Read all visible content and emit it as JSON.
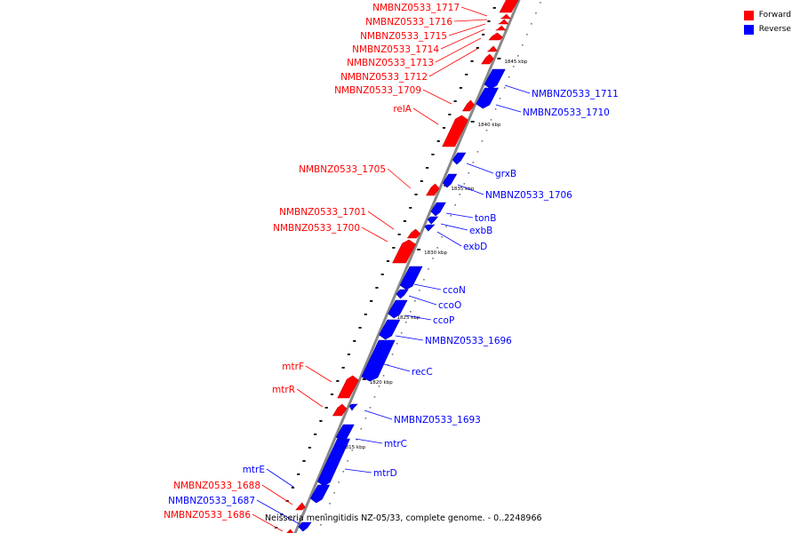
{
  "legend": [
    {
      "label": "Forward",
      "color": "#ff0000"
    },
    {
      "label": "Reverse",
      "color": "#0000ff"
    }
  ],
  "caption": "Neisseria meningitidis NZ-05/33, complete genome. - 0..2248966",
  "colors": {
    "forward": "#ff0000",
    "reverse": "#0000ff",
    "axis": "#888888",
    "tick": "#000000"
  },
  "scale_labels": [
    "1845 kbp",
    "1840 kbp",
    "1835 kbp",
    "1830 kbp",
    "1825 kbp",
    "1820 kbp",
    "1815 kbp"
  ],
  "forward_labels": [
    "NMBNZ0533_1717",
    "NMBNZ0533_1716",
    "NMBNZ0533_1715",
    "NMBNZ0533_1714",
    "NMBNZ0533_1713",
    "NMBNZ0533_1712",
    "NMBNZ0533_1709",
    "relA",
    "NMBNZ0533_1705",
    "NMBNZ0533_1701",
    "NMBNZ0533_1700",
    "mtrF",
    "mtrR",
    "NMBNZ0533_1688",
    "NMBNZ0533_1686"
  ],
  "reverse_labels": [
    "NMBNZ0533_1711",
    "NMBNZ0533_1710",
    "grxB",
    "NMBNZ0533_1706",
    "tonB",
    "exbB",
    "exbD",
    "ccoN",
    "ccoO",
    "ccoP",
    "NMBNZ0533_1696",
    "recC",
    "NMBNZ0533_1693",
    "mtrC",
    "mtrD",
    "mtrE",
    "NMBNZ0533_1687"
  ]
}
